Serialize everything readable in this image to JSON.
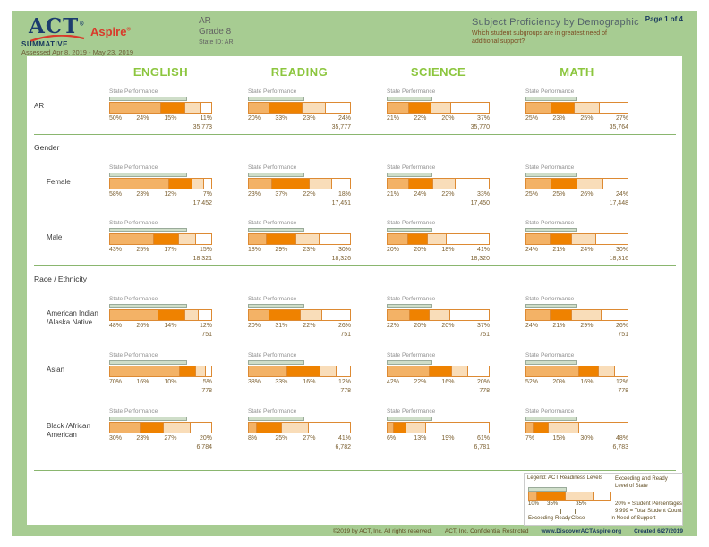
{
  "header": {
    "logo_act": "ACT",
    "logo_aspire": "Aspire",
    "reg_mark": "®",
    "program": "SUMMATIVE",
    "assessed": "Assessed Apr 8, 2019 - May 23, 2019",
    "org": "AR",
    "grade": "Grade 8",
    "state_id": "State ID: AR",
    "title": "Subject Proficiency by Demographic",
    "question": "Which student subgroups are in greatest need of additional support?",
    "page": "Page 1 of 4"
  },
  "subjects": [
    "ENGLISH",
    "READING",
    "SCIENCE",
    "MATH"
  ],
  "state_performance_label": "State Performance",
  "state_ready_line_pcts": [
    74,
    53,
    43,
    48
  ],
  "readiness_levels": [
    "Exceeding",
    "Ready",
    "Close",
    "In Need of Support"
  ],
  "sections": [
    {
      "title": "",
      "rows": [
        {
          "label": "AR",
          "cells": [
            {
              "pcts": [
                50,
                24,
                15,
                11
              ],
              "count": "35,773"
            },
            {
              "pcts": [
                20,
                33,
                23,
                24
              ],
              "count": "35,777"
            },
            {
              "pcts": [
                21,
                22,
                20,
                37
              ],
              "count": "35,770"
            },
            {
              "pcts": [
                25,
                23,
                25,
                27
              ],
              "count": "35,764"
            }
          ]
        }
      ]
    },
    {
      "title": "Gender",
      "rows": [
        {
          "label": "Female",
          "cells": [
            {
              "pcts": [
                58,
                23,
                12,
                7
              ],
              "count": "17,452"
            },
            {
              "pcts": [
                23,
                37,
                22,
                18
              ],
              "count": "17,451"
            },
            {
              "pcts": [
                21,
                24,
                22,
                33
              ],
              "count": "17,450"
            },
            {
              "pcts": [
                25,
                25,
                26,
                24
              ],
              "count": "17,448"
            }
          ]
        },
        {
          "label": "Male",
          "cells": [
            {
              "pcts": [
                43,
                25,
                17,
                15
              ],
              "count": "18,321"
            },
            {
              "pcts": [
                18,
                29,
                23,
                30
              ],
              "count": "18,326"
            },
            {
              "pcts": [
                20,
                20,
                18,
                41
              ],
              "count": "18,320"
            },
            {
              "pcts": [
                24,
                21,
                24,
                30
              ],
              "count": "18,316"
            }
          ]
        }
      ]
    },
    {
      "title": "Race / Ethnicity",
      "rows": [
        {
          "label": "American Indian\n/Alaska Native",
          "cells": [
            {
              "pcts": [
                48,
                26,
                14,
                12
              ],
              "count": "751"
            },
            {
              "pcts": [
                20,
                31,
                22,
                26
              ],
              "count": "751"
            },
            {
              "pcts": [
                22,
                20,
                20,
                37
              ],
              "count": "751"
            },
            {
              "pcts": [
                24,
                21,
                29,
                26
              ],
              "count": "751"
            }
          ]
        },
        {
          "label": "Asian",
          "cells": [
            {
              "pcts": [
                70,
                16,
                10,
                5
              ],
              "count": "778"
            },
            {
              "pcts": [
                38,
                33,
                16,
                12
              ],
              "count": "778"
            },
            {
              "pcts": [
                42,
                22,
                16,
                20
              ],
              "count": "778"
            },
            {
              "pcts": [
                52,
                20,
                16,
                12
              ],
              "count": "778"
            }
          ]
        },
        {
          "label": "Black /African\nAmerican",
          "cells": [
            {
              "pcts": [
                30,
                23,
                27,
                20
              ],
              "count": "6,784"
            },
            {
              "pcts": [
                8,
                25,
                27,
                41
              ],
              "count": "6,782"
            },
            {
              "pcts": [
                6,
                13,
                19,
                61
              ],
              "count": "6,781"
            },
            {
              "pcts": [
                7,
                15,
                30,
                48
              ],
              "count": "6,783"
            }
          ]
        }
      ]
    }
  ],
  "legend": {
    "title": "Legend: ACT Readiness Levels",
    "state_note_line1": "Exceeding and Ready",
    "state_note_line2": "Level of State",
    "sample_segments": [
      10,
      35,
      35,
      20
    ],
    "sample_state_pct": 45,
    "sample_pcts": [
      "10%",
      "35%",
      "35%"
    ],
    "callout_pct": "20% = Student Percentages",
    "callout_count": "9,999 = Total Student Count",
    "level_labels": [
      "Exceeding",
      "Ready",
      "Close",
      "In Need of Support"
    ]
  },
  "footer": {
    "copyright": "©2019 by ACT, Inc. All rights reserved.",
    "confidential": "ACT, Inc. Confidential Restricted",
    "url": "www.DiscoverACTAspire.org",
    "created": "Created 6/27/2019"
  },
  "colors": {
    "page_bg": "#a7cc92",
    "panel_bg": "#ffffff",
    "subject_green": "#8cc63e",
    "seg_exceeding": "#f3b266",
    "seg_ready": "#ef8200",
    "seg_close": "#f9ddb9",
    "seg_in_need": "#ffffff",
    "bar_border": "#dd8a33",
    "state_line_fill": "#cfdec9",
    "state_line_border": "#9aab9a",
    "pct_text": "#7c6031",
    "navy": "#17375d",
    "logo_red": "#d93a2b",
    "question_brown": "#7b4a21"
  }
}
